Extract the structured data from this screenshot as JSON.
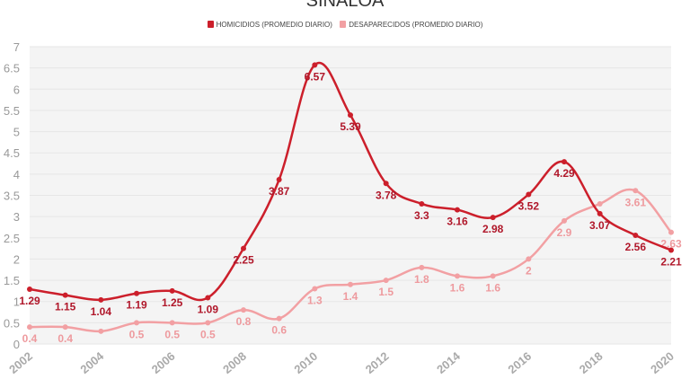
{
  "chart_data": {
    "type": "line",
    "title": "SINALOA",
    "xlabel": "",
    "ylabel": "",
    "ylim": [
      0,
      7
    ],
    "xlim": [
      2002,
      2020
    ],
    "grid": true,
    "legend_position": "top-center",
    "y_ticks": [
      "0",
      "0.5",
      "1",
      "1.5",
      "2",
      "2.5",
      "3",
      "3.5",
      "4",
      "4.5",
      "5",
      "5.5",
      "6",
      "6.5",
      "7"
    ],
    "x_ticks": [
      "2002",
      "2004",
      "2006",
      "2008",
      "2010",
      "2012",
      "2014",
      "2016",
      "2018",
      "2020"
    ],
    "x": [
      2002,
      2003,
      2004,
      2005,
      2006,
      2007,
      2008,
      2009,
      2010,
      2011,
      2012,
      2013,
      2014,
      2015,
      2016,
      2017,
      2018,
      2019,
      2020
    ],
    "series": [
      {
        "name": "HOMICIDIOS (PROMEDIO DIARIO)",
        "color": "#cc1f2b",
        "label_color": "#b0172a",
        "values": [
          1.29,
          1.15,
          1.04,
          1.19,
          1.25,
          1.09,
          2.25,
          3.87,
          6.57,
          5.39,
          3.78,
          3.3,
          3.16,
          2.98,
          3.52,
          4.29,
          3.07,
          2.56,
          2.21
        ],
        "labels": [
          "1.29",
          "1.15",
          "1.04",
          "1.19",
          "1.25",
          "1.09",
          "2.25",
          "3.87",
          "6.57",
          "5.39",
          "3.78",
          "3.3",
          "3.16",
          "2.98",
          "3.52",
          "4.29",
          "3.07",
          "2.56",
          "2.21"
        ]
      },
      {
        "name": "DESAPARECIDOS (PROMEDIO DIARIO)",
        "color": "#f2a0a3",
        "label_color": "#ee9a9e",
        "values": [
          0.4,
          0.4,
          0.3,
          0.5,
          0.5,
          0.5,
          0.8,
          0.6,
          1.3,
          1.4,
          1.5,
          1.8,
          1.6,
          1.6,
          2.0,
          2.9,
          3.3,
          3.61,
          2.63
        ],
        "labels": [
          "0.4",
          "0.4",
          null,
          "0.5",
          "0.5",
          "0.5",
          "0.8",
          "0.6",
          "1.3",
          "1.4",
          "1.5",
          "1.8",
          "1.6",
          "1.6",
          "2",
          "2.9",
          null,
          "3.61",
          "2.63"
        ]
      }
    ]
  }
}
